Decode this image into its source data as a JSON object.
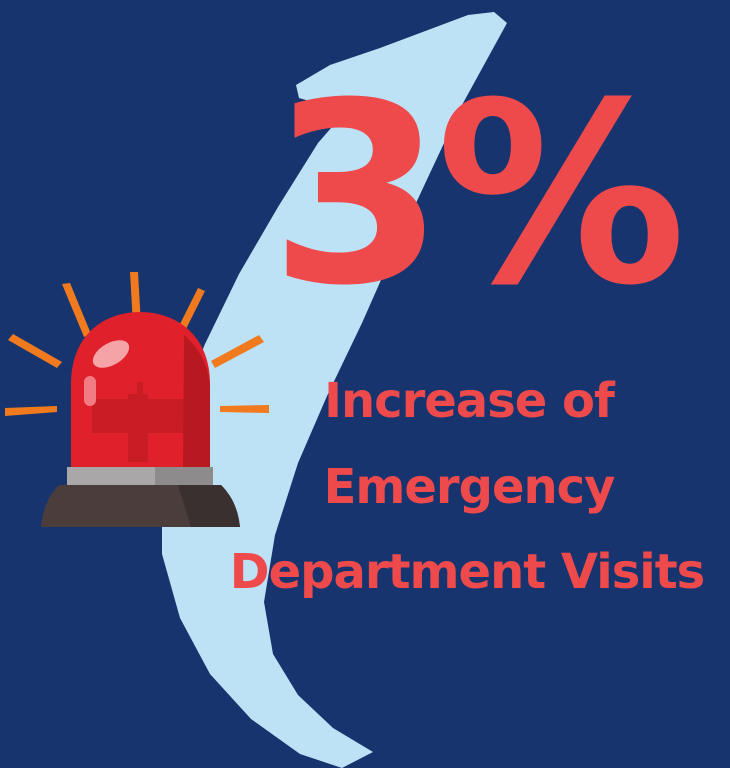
{
  "stat": {
    "value": "3%",
    "label_line_1": "Increase of",
    "label_line_2": "Emergency",
    "label_line_3": "Department Visits"
  },
  "colors": {
    "background": "#17346F",
    "arrow": "#BEE2F5",
    "accent": "#EE4A4C",
    "siren_red": "#E0212B",
    "siren_base": "#4A3D3B",
    "siren_band": "#A9A7A8",
    "rays": "#F07A1D"
  },
  "icons": {
    "arrow": "curved-up-arrow-icon",
    "siren": "emergency-siren-icon"
  }
}
